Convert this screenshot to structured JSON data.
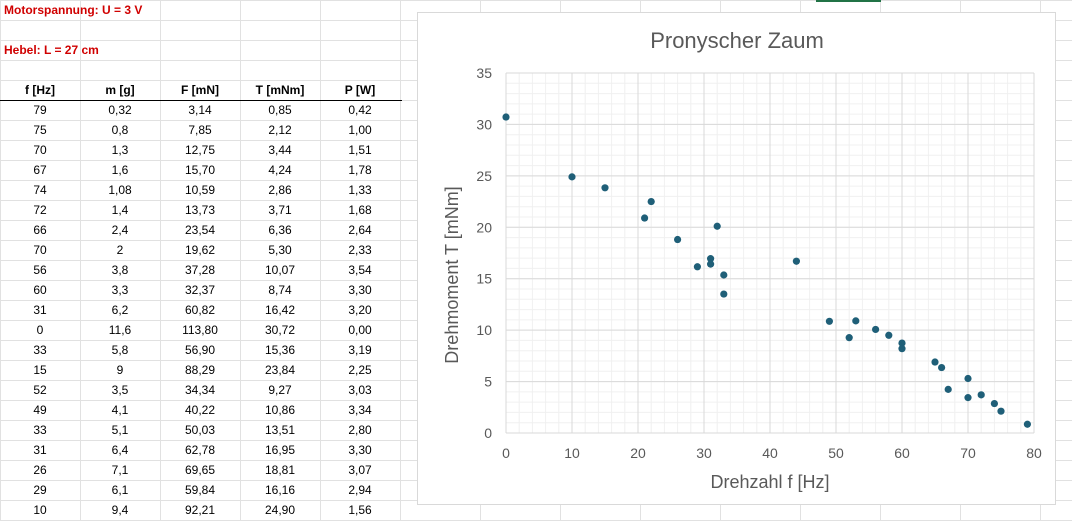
{
  "sheet": {
    "label_voltage": "Motorspannung: U = 3 V",
    "label_lever": "Hebel: L = 27 cm",
    "headers": [
      "f [Hz]",
      "m [g]",
      "F [mN]",
      "T [mNm]",
      "P [W]"
    ],
    "rows": [
      [
        "79",
        "0,32",
        "3,14",
        "0,85",
        "0,42"
      ],
      [
        "75",
        "0,8",
        "7,85",
        "2,12",
        "1,00"
      ],
      [
        "70",
        "1,3",
        "12,75",
        "3,44",
        "1,51"
      ],
      [
        "67",
        "1,6",
        "15,70",
        "4,24",
        "1,78"
      ],
      [
        "74",
        "1,08",
        "10,59",
        "2,86",
        "1,33"
      ],
      [
        "72",
        "1,4",
        "13,73",
        "3,71",
        "1,68"
      ],
      [
        "66",
        "2,4",
        "23,54",
        "6,36",
        "2,64"
      ],
      [
        "70",
        "2",
        "19,62",
        "5,30",
        "2,33"
      ],
      [
        "56",
        "3,8",
        "37,28",
        "10,07",
        "3,54"
      ],
      [
        "60",
        "3,3",
        "32,37",
        "8,74",
        "3,30"
      ],
      [
        "31",
        "6,2",
        "60,82",
        "16,42",
        "3,20"
      ],
      [
        "0",
        "11,6",
        "113,80",
        "30,72",
        "0,00"
      ],
      [
        "33",
        "5,8",
        "56,90",
        "15,36",
        "3,19"
      ],
      [
        "15",
        "9",
        "88,29",
        "23,84",
        "2,25"
      ],
      [
        "52",
        "3,5",
        "34,34",
        "9,27",
        "3,03"
      ],
      [
        "49",
        "4,1",
        "40,22",
        "10,86",
        "3,34"
      ],
      [
        "33",
        "5,1",
        "50,03",
        "13,51",
        "2,80"
      ],
      [
        "31",
        "6,4",
        "62,78",
        "16,95",
        "3,30"
      ],
      [
        "26",
        "7,1",
        "69,65",
        "18,81",
        "3,07"
      ],
      [
        "29",
        "6,1",
        "59,84",
        "16,16",
        "2,94"
      ],
      [
        "10",
        "9,4",
        "92,21",
        "24,90",
        "1,56"
      ]
    ]
  },
  "chart_data": {
    "type": "scatter",
    "title": "Pronyscher Zaum",
    "xlabel": "Drehzahl f [Hz]",
    "ylabel": "Drehmoment T [mNm]",
    "xlim": [
      0,
      80
    ],
    "ylim": [
      0,
      35
    ],
    "xticks": [
      0,
      10,
      20,
      30,
      40,
      50,
      60,
      70,
      80
    ],
    "yticks": [
      0,
      5,
      10,
      15,
      20,
      25,
      30,
      35
    ],
    "grid": true,
    "marker_color": "#1f5f78",
    "points": [
      [
        0,
        30.72
      ],
      [
        10,
        24.9
      ],
      [
        15,
        23.84
      ],
      [
        22,
        22.5
      ],
      [
        21,
        20.9
      ],
      [
        26,
        18.81
      ],
      [
        32,
        20.1
      ],
      [
        31,
        16.95
      ],
      [
        31,
        16.42
      ],
      [
        29,
        16.16
      ],
      [
        33,
        15.36
      ],
      [
        33,
        13.51
      ],
      [
        44,
        16.7
      ],
      [
        49,
        10.86
      ],
      [
        53,
        10.9
      ],
      [
        52,
        9.27
      ],
      [
        56,
        10.07
      ],
      [
        58,
        9.5
      ],
      [
        60,
        8.74
      ],
      [
        60,
        8.2
      ],
      [
        65,
        6.9
      ],
      [
        66,
        6.36
      ],
      [
        67,
        4.24
      ],
      [
        70,
        5.3
      ],
      [
        70,
        3.44
      ],
      [
        72,
        3.71
      ],
      [
        74,
        2.86
      ],
      [
        75,
        2.12
      ],
      [
        79,
        0.85
      ]
    ]
  }
}
